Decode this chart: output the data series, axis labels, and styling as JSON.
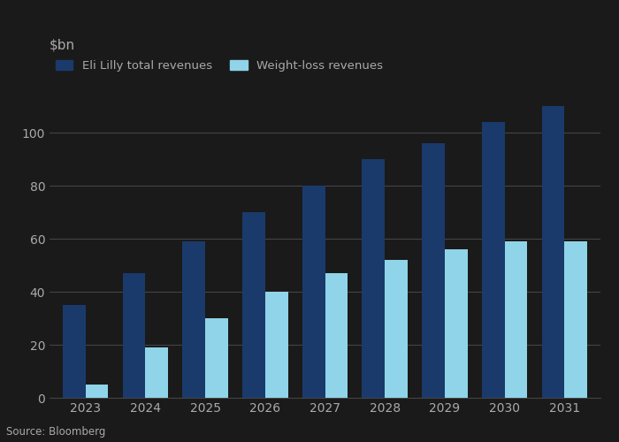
{
  "years": [
    2023,
    2024,
    2025,
    2026,
    2027,
    2028,
    2029,
    2030,
    2031
  ],
  "eli_lilly_total": [
    35,
    47,
    59,
    70,
    80,
    90,
    96,
    104,
    110
  ],
  "weight_loss": [
    5,
    19,
    30,
    40,
    47,
    52,
    56,
    59,
    59
  ],
  "bar_color_total": "#1a3a6b",
  "bar_color_weight": "#8fd4e8",
  "ylabel": "$bn",
  "ylim": [
    0,
    120
  ],
  "yticks": [
    0,
    20,
    40,
    60,
    80,
    100
  ],
  "legend_total": "Eli Lilly total revenues",
  "legend_weight": "Weight-loss revenues",
  "source": "Source: Bloomberg",
  "background_color": "#1a1a1a",
  "plot_bg_color": "#1a1a1a",
  "grid_color": "#444444",
  "text_color": "#aaaaaa",
  "bar_width": 0.38,
  "label_fontsize": 11,
  "tick_fontsize": 10,
  "legend_fontsize": 9.5,
  "source_fontsize": 8.5
}
